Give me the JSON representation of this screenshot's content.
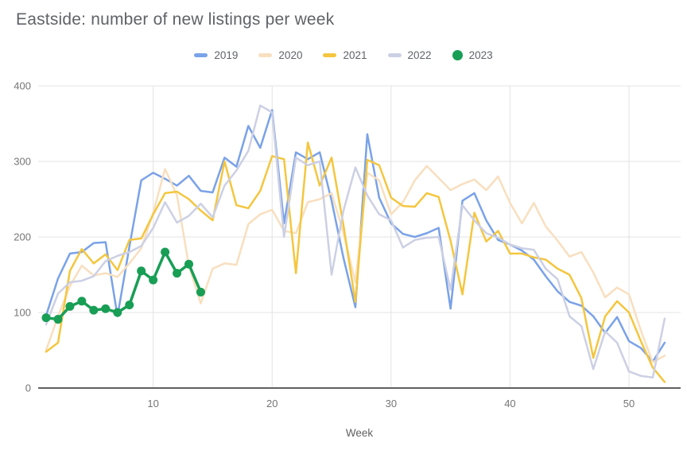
{
  "chart_data": {
    "type": "line",
    "title": "Eastside: number of new listings per week",
    "xlabel": "Week",
    "x_ticks": [
      10,
      20,
      30,
      40,
      50
    ],
    "y_ticks": [
      0,
      100,
      200,
      300,
      400
    ],
    "xlim": [
      1,
      53
    ],
    "ylim": [
      0,
      400
    ],
    "grid": true,
    "legend_position": "top",
    "grid_color": "#e3e3e3",
    "axis_line_color": "#616161",
    "series": [
      {
        "name": "2019",
        "color": "#7aa2e8",
        "markers": false,
        "line_width": 2.5,
        "values": [
          96,
          145,
          178,
          180,
          192,
          193,
          95,
          187,
          275,
          285,
          277,
          268,
          281,
          261,
          259,
          305,
          293,
          347,
          318,
          368,
          218,
          312,
          303,
          312,
          248,
          172,
          107,
          336,
          252,
          218,
          204,
          200,
          205,
          212,
          105,
          248,
          258,
          222,
          196,
          190,
          182,
          170,
          148,
          128,
          114,
          109,
          95,
          73,
          94,
          62,
          53,
          35,
          60
        ]
      },
      {
        "name": "2020",
        "color": "#f8dfbf",
        "markers": false,
        "line_width": 2.5,
        "values": [
          50,
          95,
          135,
          162,
          149,
          152,
          147,
          165,
          185,
          232,
          290,
          255,
          162,
          112,
          158,
          165,
          163,
          217,
          230,
          236,
          208,
          205,
          246,
          250,
          258,
          205,
          140,
          285,
          275,
          230,
          246,
          275,
          294,
          278,
          262,
          270,
          276,
          262,
          280,
          245,
          218,
          245,
          214,
          195,
          174,
          180,
          153,
          120,
          133,
          124,
          76,
          34,
          43
        ]
      },
      {
        "name": "2021",
        "color": "#f4c63f",
        "markers": false,
        "line_width": 2.5,
        "values": [
          48,
          60,
          155,
          184,
          165,
          177,
          156,
          196,
          198,
          230,
          258,
          260,
          250,
          235,
          222,
          300,
          242,
          238,
          261,
          307,
          303,
          152,
          325,
          268,
          305,
          215,
          114,
          302,
          295,
          252,
          241,
          240,
          258,
          253,
          195,
          124,
          232,
          194,
          208,
          178,
          178,
          173,
          170,
          158,
          150,
          119,
          40,
          95,
          115,
          100,
          62,
          27,
          8
        ]
      },
      {
        "name": "2022",
        "color": "#ccd0e4",
        "markers": false,
        "line_width": 2.5,
        "values": [
          84,
          125,
          140,
          142,
          148,
          168,
          175,
          180,
          188,
          212,
          246,
          219,
          228,
          244,
          226,
          268,
          288,
          314,
          374,
          365,
          200,
          305,
          295,
          300,
          150,
          235,
          292,
          255,
          230,
          222,
          186,
          196,
          199,
          200,
          130,
          242,
          222,
          205,
          199,
          190,
          185,
          183,
          158,
          144,
          95,
          82,
          25,
          75,
          60,
          22,
          16,
          14,
          92
        ]
      },
      {
        "name": "2023",
        "color": "#189e55",
        "markers": true,
        "line_width": 3.5,
        "marker_radius": 5.5,
        "values": [
          93,
          91,
          108,
          115,
          103,
          105,
          100,
          110,
          155,
          143,
          180,
          152,
          164,
          127
        ]
      }
    ]
  }
}
